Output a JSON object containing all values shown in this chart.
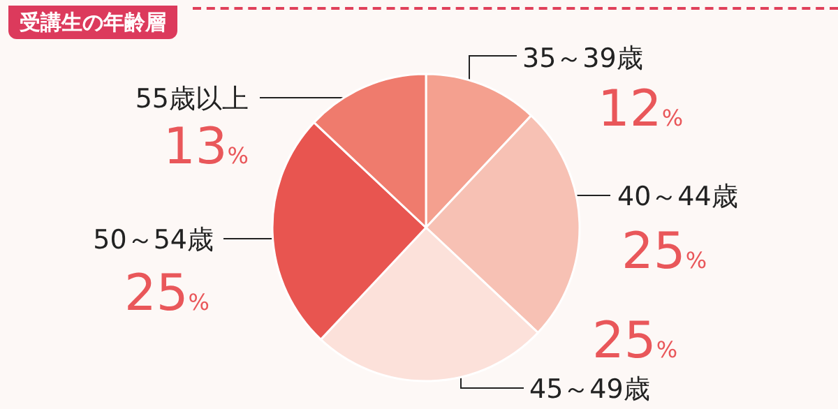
{
  "chart_data": {
    "type": "pie",
    "title": "受講生の年齢層",
    "categories": [
      "35～39歳",
      "40～44歳",
      "45～49歳",
      "50～54歳",
      "55歳以上"
    ],
    "values": [
      12,
      25,
      25,
      25,
      13
    ],
    "value_labels": [
      "12%",
      "25%",
      "25%",
      "25%",
      "13%"
    ],
    "colors": [
      "#f4a08f",
      "#f7c1b4",
      "#fce1da",
      "#e85550",
      "#ef7b6d"
    ],
    "legend": false
  }
}
